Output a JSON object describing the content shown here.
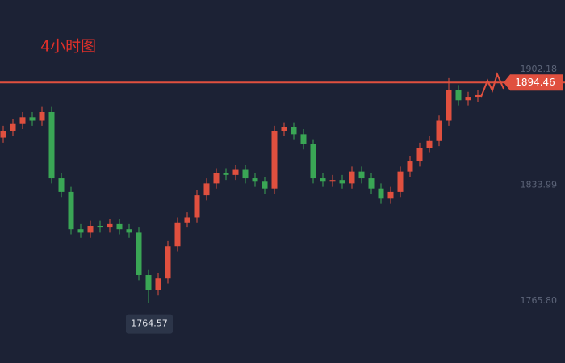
{
  "chart_data": {
    "type": "candlestick",
    "title": "4小时图",
    "categories": [
      null,
      null,
      null,
      null,
      null,
      null,
      null,
      null,
      null,
      null,
      null,
      null,
      null,
      null,
      null,
      null,
      null,
      null,
      null,
      null,
      null,
      null,
      null,
      null,
      null,
      null,
      null,
      null,
      null,
      null,
      null,
      null,
      null,
      null,
      null,
      null,
      null,
      null,
      null,
      null,
      null,
      null,
      null,
      null,
      null,
      null,
      null,
      null,
      null,
      null
    ],
    "open": [
      1862,
      1866,
      1870,
      1874,
      1872,
      1877,
      1838,
      1830,
      1808,
      1806,
      1810,
      1809,
      1811,
      1808,
      1806,
      1781,
      1772,
      1779,
      1798,
      1812,
      1815,
      1828,
      1835,
      1841,
      1840,
      1843,
      1838,
      1836,
      1832,
      1866,
      1868,
      1864,
      1858,
      1838,
      1836,
      1837,
      1835,
      1842,
      1838,
      1832,
      1826,
      1830,
      1842,
      1848,
      1856,
      1860,
      1872,
      1890,
      1884,
      1886
    ],
    "high": [
      1869,
      1873,
      1877,
      1877,
      1880,
      1880,
      1841,
      1833,
      1811,
      1813,
      1813,
      1814,
      1814,
      1811,
      1809,
      1784,
      1782,
      1801,
      1815,
      1818,
      1831,
      1838,
      1844,
      1844,
      1846,
      1846,
      1841,
      1839,
      1869,
      1871,
      1871,
      1867,
      1861,
      1841,
      1840,
      1840,
      1845,
      1845,
      1841,
      1835,
      1833,
      1845,
      1851,
      1859,
      1863,
      1875,
      1897,
      1893,
      1889,
      1890
    ],
    "low": [
      1859,
      1863,
      1867,
      1869,
      1869,
      1835,
      1827,
      1805,
      1803,
      1803,
      1806,
      1806,
      1805,
      1803,
      1778,
      1764.57,
      1769,
      1776,
      1795,
      1809,
      1812,
      1825,
      1832,
      1837,
      1837,
      1835,
      1833,
      1829,
      1829,
      1863,
      1861,
      1855,
      1835,
      1833,
      1833,
      1832,
      1832,
      1835,
      1829,
      1823,
      1823,
      1827,
      1839,
      1845,
      1853,
      1857,
      1869,
      1881,
      1881,
      1883
    ],
    "close": [
      1866,
      1870,
      1874,
      1872,
      1877,
      1838,
      1830,
      1808,
      1806,
      1810,
      1809,
      1811,
      1808,
      1806,
      1781,
      1772,
      1779,
      1798,
      1812,
      1815,
      1828,
      1835,
      1841,
      1840,
      1843,
      1838,
      1836,
      1832,
      1866,
      1868,
      1864,
      1858,
      1838,
      1836,
      1837,
      1835,
      1842,
      1838,
      1832,
      1826,
      1830,
      1842,
      1848,
      1856,
      1860,
      1872,
      1890,
      1884,
      1886,
      1887
    ],
    "up_color": "#e0503f",
    "down_color": "#3aa655",
    "ylim": [
      1729.21,
      1943.05
    ],
    "yticks": [
      1902.18,
      1833.99,
      {
        "value": 1765.8,
        "label": "1765.80"
      }
    ],
    "price_line": 1894.46,
    "min_label_index": 15
  }
}
